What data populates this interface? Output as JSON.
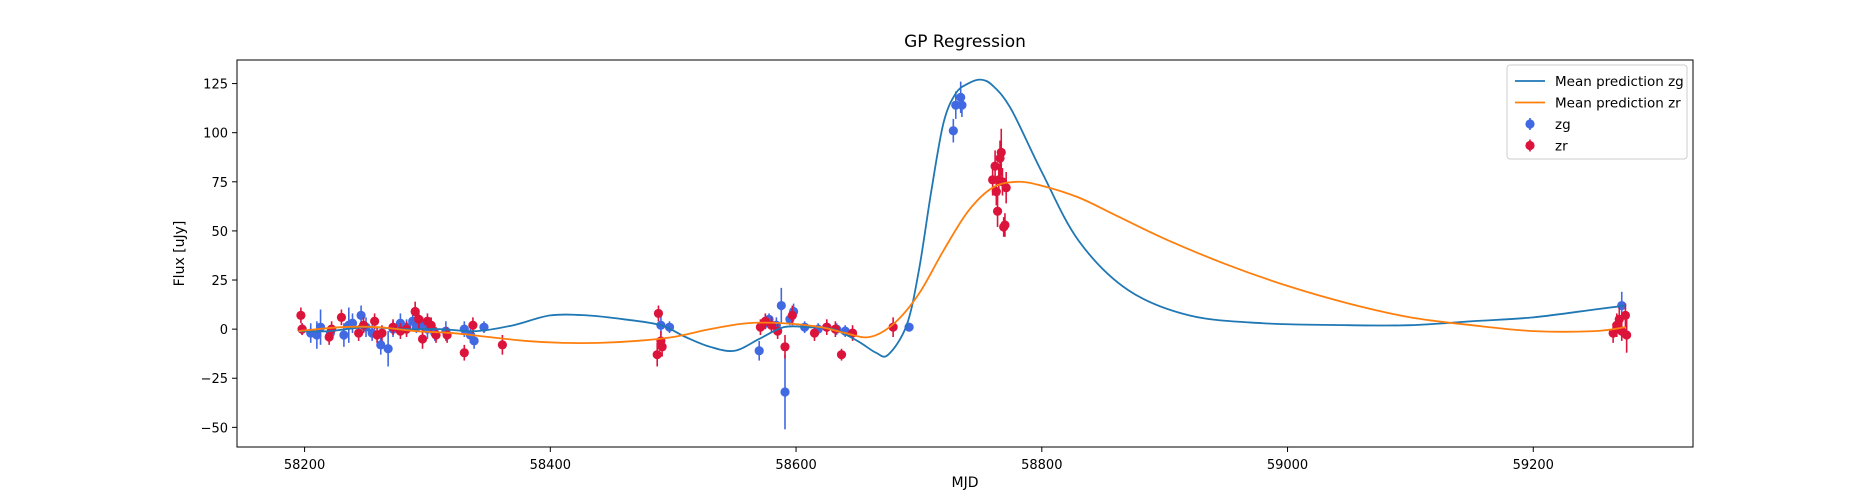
{
  "chart_data": {
    "type": "scatter",
    "title": "GP Regression",
    "xlabel": "MJD",
    "ylabel": "Flux [uJy]",
    "xlim": [
      58145,
      59330
    ],
    "ylim": [
      -60,
      137
    ],
    "xticks": [
      58200,
      58400,
      58600,
      58800,
      59000,
      59200
    ],
    "yticks": [
      -50,
      -25,
      0,
      25,
      50,
      75,
      100,
      125
    ],
    "grid": false,
    "legend_position": "top-right",
    "lines": [
      {
        "name": "Mean prediction zg",
        "color": "#1f77b4",
        "x": [
          58195,
          58220,
          58250,
          58280,
          58310,
          58340,
          58370,
          58400,
          58430,
          58460,
          58490,
          58510,
          58530,
          58550,
          58570,
          58590,
          58610,
          58630,
          58650,
          58665,
          58675,
          58690,
          58700,
          58710,
          58720,
          58730,
          58740,
          58750,
          58760,
          58775,
          58800,
          58830,
          58870,
          58920,
          58980,
          59050,
          59100,
          59150,
          59200,
          59250,
          59275
        ],
        "y": [
          -1,
          -1,
          1,
          0,
          0,
          -1,
          2,
          7,
          7,
          5,
          2,
          -4,
          -9,
          -11,
          -5,
          1,
          1,
          0,
          -6,
          -12,
          -13,
          2,
          30,
          70,
          105,
          120,
          125,
          127,
          124,
          112,
          80,
          45,
          20,
          7,
          3,
          2,
          2,
          4,
          6,
          10,
          12
        ]
      },
      {
        "name": "Mean prediction zr",
        "color": "#ff7f0e",
        "x": [
          58195,
          58230,
          58260,
          58290,
          58320,
          58350,
          58380,
          58410,
          58440,
          58470,
          58500,
          58530,
          58560,
          58590,
          58620,
          58640,
          58660,
          58680,
          58700,
          58720,
          58740,
          58760,
          58780,
          58800,
          58830,
          58860,
          58900,
          58950,
          59000,
          59050,
          59100,
          59150,
          59200,
          59250,
          59275
        ],
        "y": [
          -1,
          1,
          1,
          -1,
          -2,
          -4,
          -6,
          -7,
          -7,
          -6,
          -4,
          0,
          3,
          3,
          1,
          -2,
          -4,
          3,
          18,
          40,
          60,
          72,
          75,
          73,
          67,
          58,
          46,
          33,
          22,
          13,
          6,
          2,
          -1,
          -1,
          1
        ]
      }
    ],
    "series": [
      {
        "name": "zg",
        "color": "#4169e1",
        "points": [
          [
            58198,
            0,
            3
          ],
          [
            58205,
            -2,
            5
          ],
          [
            58210,
            -3,
            7
          ],
          [
            58213,
            1,
            9
          ],
          [
            58221,
            -2,
            4
          ],
          [
            58232,
            -3,
            6
          ],
          [
            58236,
            2,
            9
          ],
          [
            58239,
            3,
            5
          ],
          [
            58246,
            7,
            5
          ],
          [
            58250,
            1,
            5
          ],
          [
            58255,
            -2,
            4
          ],
          [
            58262,
            -8,
            5
          ],
          [
            58268,
            -10,
            9
          ],
          [
            58272,
            0,
            4
          ],
          [
            58278,
            3,
            5
          ],
          [
            58283,
            1,
            4
          ],
          [
            58288,
            4,
            5
          ],
          [
            58291,
            1,
            3
          ],
          [
            58296,
            2,
            4
          ],
          [
            58300,
            0,
            5
          ],
          [
            58306,
            -2,
            4
          ],
          [
            58315,
            -1,
            5
          ],
          [
            58330,
            0,
            4
          ],
          [
            58335,
            -3,
            4
          ],
          [
            58338,
            -6,
            4
          ],
          [
            58346,
            1,
            3
          ],
          [
            58490,
            2,
            5
          ],
          [
            58497,
            1,
            3
          ],
          [
            58570,
            -11,
            5
          ],
          [
            58575,
            3,
            3
          ],
          [
            58578,
            5,
            3
          ],
          [
            58584,
            2,
            4
          ],
          [
            58588,
            12,
            9
          ],
          [
            58591,
            -32,
            19
          ],
          [
            58595,
            5,
            3
          ],
          [
            58598,
            9,
            4
          ],
          [
            58607,
            1,
            3
          ],
          [
            58618,
            0,
            3
          ],
          [
            58625,
            1,
            3
          ],
          [
            58633,
            0,
            3
          ],
          [
            58640,
            -1,
            3
          ],
          [
            58692,
            1,
            2
          ],
          [
            58728,
            101,
            6
          ],
          [
            58730,
            114,
            7
          ],
          [
            58734,
            118,
            8
          ],
          [
            58735,
            114,
            6
          ],
          [
            59272,
            12,
            7
          ]
        ]
      },
      {
        "name": "zr",
        "color": "#dc143c",
        "points": [
          [
            58197,
            7,
            4
          ],
          [
            58198,
            0,
            3
          ],
          [
            58220,
            -4,
            4
          ],
          [
            58222,
            0,
            4
          ],
          [
            58230,
            6,
            4
          ],
          [
            58244,
            -2,
            4
          ],
          [
            58248,
            2,
            4
          ],
          [
            58257,
            4,
            4
          ],
          [
            58259,
            -3,
            4
          ],
          [
            58263,
            -2,
            4
          ],
          [
            58272,
            1,
            4
          ],
          [
            58278,
            -1,
            4
          ],
          [
            58283,
            0,
            4
          ],
          [
            58290,
            9,
            5
          ],
          [
            58293,
            5,
            5
          ],
          [
            58296,
            -5,
            5
          ],
          [
            58300,
            4,
            4
          ],
          [
            58303,
            2,
            4
          ],
          [
            58307,
            -3,
            4
          ],
          [
            58316,
            -3,
            4
          ],
          [
            58330,
            -12,
            4
          ],
          [
            58337,
            2,
            4
          ],
          [
            58361,
            -8,
            5
          ],
          [
            58487,
            -13,
            6
          ],
          [
            58488,
            8,
            4
          ],
          [
            58490,
            -6,
            5
          ],
          [
            58491,
            -9,
            5
          ],
          [
            58571,
            1,
            4
          ],
          [
            58575,
            4,
            4
          ],
          [
            58580,
            2,
            4
          ],
          [
            58585,
            -1,
            4
          ],
          [
            58591,
            -9,
            6
          ],
          [
            58597,
            7,
            5
          ],
          [
            58615,
            -2,
            4
          ],
          [
            58625,
            1,
            4
          ],
          [
            58632,
            0,
            4
          ],
          [
            58637,
            -13,
            3
          ],
          [
            58646,
            -2,
            4
          ],
          [
            58679,
            1,
            5
          ],
          [
            58760,
            76,
            8
          ],
          [
            58762,
            83,
            8
          ],
          [
            58763,
            70,
            7
          ],
          [
            58764,
            60,
            8
          ],
          [
            58765,
            76,
            8
          ],
          [
            58766,
            87,
            9
          ],
          [
            58767,
            90,
            12
          ],
          [
            58768,
            75,
            7
          ],
          [
            58769,
            52,
            5
          ],
          [
            58770,
            53,
            6
          ],
          [
            58771,
            72,
            8
          ],
          [
            59265,
            -2,
            5
          ],
          [
            59268,
            2,
            6
          ],
          [
            59270,
            5,
            6
          ],
          [
            59272,
            -1,
            5
          ],
          [
            59275,
            7,
            6
          ],
          [
            59276,
            -3,
            9
          ]
        ]
      }
    ],
    "legend": [
      {
        "label": "Mean prediction zg",
        "kind": "line",
        "color": "#1f77b4"
      },
      {
        "label": "Mean prediction zr",
        "kind": "line",
        "color": "#ff7f0e"
      },
      {
        "label": "zg",
        "kind": "errorbar",
        "color": "#4169e1"
      },
      {
        "label": "zr",
        "kind": "errorbar",
        "color": "#dc143c"
      }
    ]
  }
}
